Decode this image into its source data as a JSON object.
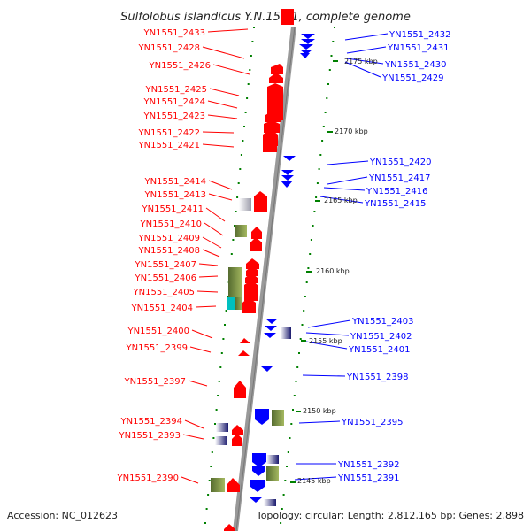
{
  "title": "Sulfolobus islandicus Y.N.15.51, complete genome",
  "footer": {
    "accession": "Accession: NC_012623",
    "topology": "Topology: circular; Length: 2,812,165 bp; Genes: 2,898"
  },
  "colors": {
    "forward": "#ff0000",
    "reverse": "#0000ff",
    "backbone": "#999999",
    "tick": "#008000",
    "cds_other": "#6b8e23",
    "rna": "#00c0c0"
  },
  "scale": [
    "2175 kbp",
    "2170 kbp",
    "2165 kbp",
    "2160 kbp",
    "2155 kbp",
    "2150 kbp",
    "2145 kbp"
  ],
  "left_labels": [
    "YN1551_2433",
    "YN1551_2428",
    "YN1551_2426",
    "YN1551_2425",
    "YN1551_2424",
    "YN1551_2423",
    "YN1551_2422",
    "YN1551_2421",
    "YN1551_2414",
    "YN1551_2413",
    "YN1551_2411",
    "YN1551_2410",
    "YN1551_2409",
    "YN1551_2408",
    "YN1551_2407",
    "YN1551_2406",
    "YN1551_2405",
    "YN1551_2404",
    "YN1551_2400",
    "YN1551_2399",
    "YN1551_2397",
    "YN1551_2394",
    "YN1551_2393",
    "YN1551_2390"
  ],
  "right_labels": [
    "YN1551_2432",
    "YN1551_2431",
    "YN1551_2430",
    "YN1551_2429",
    "YN1551_2420",
    "YN1551_2417",
    "YN1551_2416",
    "YN1551_2415",
    "YN1551_2403",
    "YN1551_2402",
    "YN1551_2401",
    "YN1551_2398",
    "YN1551_2395",
    "YN1551_2392",
    "YN1551_2391"
  ]
}
